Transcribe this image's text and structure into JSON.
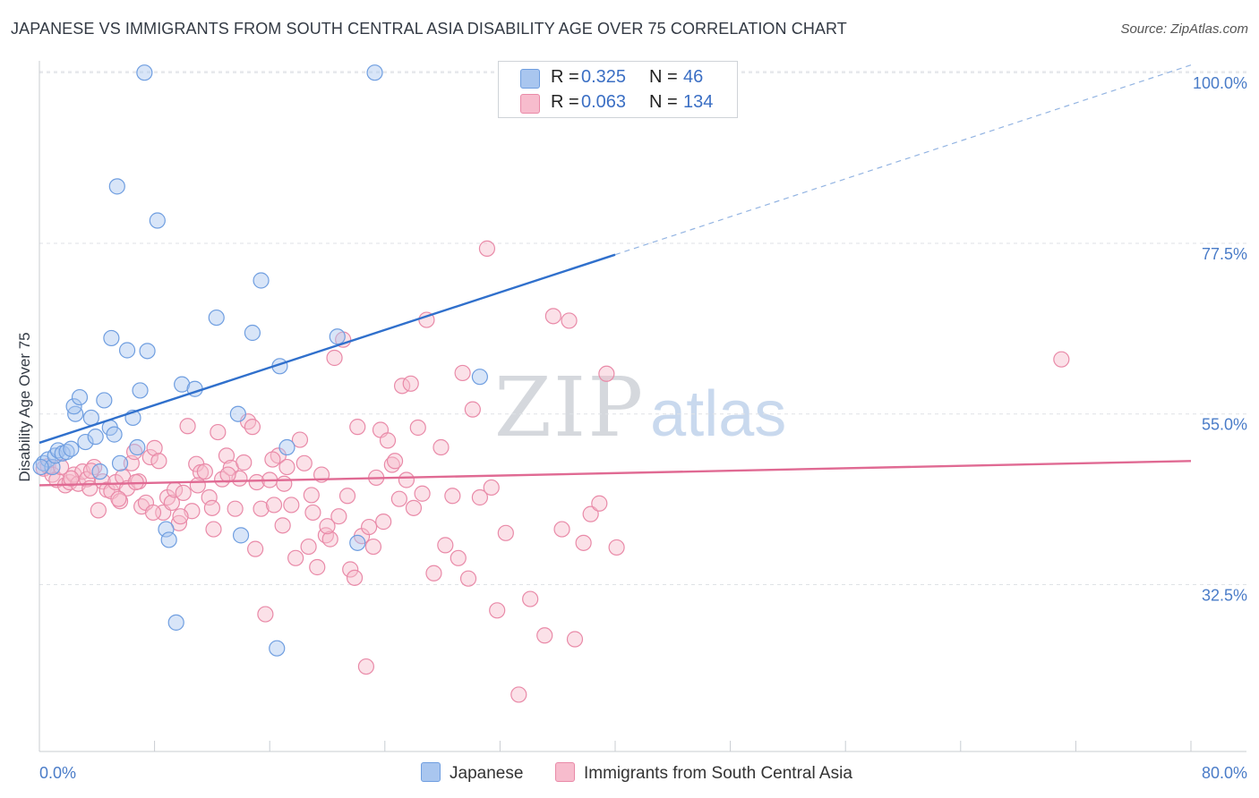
{
  "title": "JAPANESE VS IMMIGRANTS FROM SOUTH CENTRAL ASIA DISABILITY AGE OVER 75 CORRELATION CHART",
  "source": "Source: ZipAtlas.com",
  "watermark": {
    "zip": "ZIP",
    "atlas": "atlas"
  },
  "legend": {
    "rows": [
      {
        "r_label": "R =",
        "r_value": "0.325",
        "n_label": "N =",
        "n_value": "46",
        "color": "#a9c6ef",
        "border": "#6f9ee0"
      },
      {
        "r_label": "R =",
        "r_value": "0.063",
        "n_label": "N =",
        "n_value": "134",
        "color": "#f7bccd",
        "border": "#e98aa8"
      }
    ]
  },
  "bottom_legend": [
    "Japanese",
    "Immigrants from South Central Asia"
  ],
  "chart_data": {
    "type": "scatter",
    "ylabel": "Disability Age Over 75",
    "xlim": [
      0,
      80
    ],
    "ylim": [
      10.5,
      102.5
    ],
    "x_tick_labels": [
      "0.0%",
      "80.0%"
    ],
    "y_ticks": [
      {
        "value": 32.5,
        "label": "32.5%"
      },
      {
        "value": 55.0,
        "label": "55.0%"
      },
      {
        "value": 77.5,
        "label": "77.5%"
      },
      {
        "value": 100.0,
        "label": "100.0%"
      }
    ],
    "grid": true,
    "colors": {
      "japanese_fill": "#a9c6ef",
      "japanese_stroke": "#6f9ee0",
      "japanese_line": "#3070cc",
      "immigrants_fill": "#f7bccd",
      "immigrants_stroke": "#e98aa8",
      "immigrants_line": "#e06a93"
    },
    "series": [
      {
        "name": "Japanese",
        "trend": {
          "x0": 0,
          "y0": 51.2,
          "x1": 40,
          "y1": 76.0,
          "dash_to_x": 80,
          "dash_to_y": 101.0
        },
        "points": [
          [
            0.3,
            48.5
          ],
          [
            0.6,
            49.0
          ],
          [
            0.9,
            48.0
          ],
          [
            1.1,
            49.5
          ],
          [
            1.3,
            50.2
          ],
          [
            1.6,
            49.8
          ],
          [
            1.9,
            50.0
          ],
          [
            2.2,
            50.4
          ],
          [
            2.5,
            55.0
          ],
          [
            2.4,
            56.0
          ],
          [
            2.8,
            57.2
          ],
          [
            3.2,
            51.3
          ],
          [
            3.6,
            54.5
          ],
          [
            3.9,
            52.0
          ],
          [
            4.2,
            47.4
          ],
          [
            4.5,
            56.8
          ],
          [
            4.9,
            53.2
          ],
          [
            5.2,
            52.3
          ],
          [
            5.0,
            65.0
          ],
          [
            5.4,
            85.0
          ],
          [
            5.6,
            48.5
          ],
          [
            6.1,
            63.4
          ],
          [
            6.5,
            54.5
          ],
          [
            6.8,
            50.6
          ],
          [
            7.0,
            58.1
          ],
          [
            7.5,
            63.3
          ],
          [
            7.3,
            100.0
          ],
          [
            8.2,
            80.5
          ],
          [
            8.8,
            39.8
          ],
          [
            9.0,
            38.4
          ],
          [
            9.5,
            27.5
          ],
          [
            9.9,
            58.9
          ],
          [
            10.8,
            58.3
          ],
          [
            12.3,
            67.7
          ],
          [
            13.8,
            55.0
          ],
          [
            14.0,
            39.0
          ],
          [
            14.8,
            65.7
          ],
          [
            15.4,
            72.6
          ],
          [
            16.5,
            24.1
          ],
          [
            16.7,
            61.3
          ],
          [
            17.2,
            50.6
          ],
          [
            20.7,
            65.2
          ],
          [
            22.1,
            38.0
          ],
          [
            23.3,
            100.0
          ],
          [
            30.6,
            59.9
          ],
          [
            0.1,
            48.0
          ]
        ]
      },
      {
        "name": "Immigrants from South Central Asia",
        "trend": {
          "x0": 0,
          "y0": 45.6,
          "x1": 80,
          "y1": 48.8
        },
        "points": [
          [
            0.3,
            47.8
          ],
          [
            0.6,
            48.1
          ],
          [
            0.9,
            47.0
          ],
          [
            1.2,
            46.3
          ],
          [
            1.5,
            48.0
          ],
          [
            1.8,
            45.6
          ],
          [
            2.1,
            46.0
          ],
          [
            2.4,
            47.0
          ],
          [
            2.7,
            45.8
          ],
          [
            3.0,
            47.4
          ],
          [
            3.3,
            46.4
          ],
          [
            3.5,
            45.2
          ],
          [
            3.8,
            48.0
          ],
          [
            4.1,
            42.3
          ],
          [
            4.4,
            46.1
          ],
          [
            4.7,
            45.0
          ],
          [
            5.0,
            44.8
          ],
          [
            5.3,
            46.0
          ],
          [
            5.6,
            43.5
          ],
          [
            5.8,
            46.7
          ],
          [
            6.1,
            45.2
          ],
          [
            6.4,
            48.5
          ],
          [
            6.6,
            50.0
          ],
          [
            6.9,
            46.1
          ],
          [
            7.1,
            42.8
          ],
          [
            7.4,
            43.3
          ],
          [
            7.7,
            49.3
          ],
          [
            8.0,
            50.5
          ],
          [
            8.3,
            48.8
          ],
          [
            8.6,
            42.0
          ],
          [
            8.9,
            44.0
          ],
          [
            9.2,
            43.3
          ],
          [
            9.4,
            45.0
          ],
          [
            9.7,
            40.6
          ],
          [
            10.0,
            44.6
          ],
          [
            10.3,
            53.4
          ],
          [
            10.6,
            42.2
          ],
          [
            10.9,
            48.4
          ],
          [
            11.2,
            47.3
          ],
          [
            11.5,
            47.4
          ],
          [
            11.8,
            44.0
          ],
          [
            12.1,
            39.8
          ],
          [
            12.4,
            52.6
          ],
          [
            12.7,
            46.4
          ],
          [
            13.0,
            49.5
          ],
          [
            13.3,
            47.9
          ],
          [
            13.6,
            42.5
          ],
          [
            13.9,
            46.5
          ],
          [
            14.2,
            48.6
          ],
          [
            14.5,
            54.0
          ],
          [
            14.8,
            53.3
          ],
          [
            15.1,
            46.0
          ],
          [
            15.4,
            42.5
          ],
          [
            15.7,
            28.6
          ],
          [
            16.0,
            46.3
          ],
          [
            16.3,
            43.0
          ],
          [
            16.6,
            49.5
          ],
          [
            16.9,
            40.3
          ],
          [
            17.2,
            48.0
          ],
          [
            17.5,
            43.0
          ],
          [
            17.8,
            36.0
          ],
          [
            18.1,
            51.6
          ],
          [
            18.4,
            48.5
          ],
          [
            18.7,
            37.5
          ],
          [
            19.0,
            42.0
          ],
          [
            19.3,
            34.8
          ],
          [
            19.6,
            47.0
          ],
          [
            19.9,
            39.0
          ],
          [
            20.2,
            38.5
          ],
          [
            20.5,
            62.4
          ],
          [
            20.8,
            41.5
          ],
          [
            21.1,
            64.8
          ],
          [
            21.4,
            44.2
          ],
          [
            21.6,
            34.5
          ],
          [
            21.9,
            33.4
          ],
          [
            22.1,
            53.3
          ],
          [
            22.4,
            38.9
          ],
          [
            22.7,
            21.7
          ],
          [
            22.9,
            40.1
          ],
          [
            23.2,
            37.5
          ],
          [
            23.4,
            46.6
          ],
          [
            23.7,
            52.9
          ],
          [
            23.9,
            40.8
          ],
          [
            24.2,
            51.5
          ],
          [
            24.5,
            48.3
          ],
          [
            24.7,
            48.8
          ],
          [
            25.0,
            43.8
          ],
          [
            25.2,
            58.7
          ],
          [
            25.5,
            46.3
          ],
          [
            25.8,
            59.0
          ],
          [
            26.0,
            42.6
          ],
          [
            26.3,
            53.2
          ],
          [
            26.6,
            44.5
          ],
          [
            26.9,
            67.4
          ],
          [
            27.4,
            34.0
          ],
          [
            27.9,
            50.6
          ],
          [
            28.2,
            37.7
          ],
          [
            28.7,
            44.2
          ],
          [
            29.1,
            36.0
          ],
          [
            29.4,
            60.4
          ],
          [
            29.8,
            33.3
          ],
          [
            30.1,
            55.6
          ],
          [
            30.6,
            44.0
          ],
          [
            31.1,
            76.8
          ],
          [
            31.4,
            45.3
          ],
          [
            31.8,
            29.1
          ],
          [
            32.4,
            39.3
          ],
          [
            33.3,
            18.0
          ],
          [
            34.1,
            30.6
          ],
          [
            35.1,
            25.8
          ],
          [
            35.7,
            67.9
          ],
          [
            36.3,
            39.8
          ],
          [
            36.8,
            67.3
          ],
          [
            37.2,
            25.3
          ],
          [
            37.8,
            38.0
          ],
          [
            38.3,
            41.8
          ],
          [
            38.9,
            43.2
          ],
          [
            39.4,
            60.3
          ],
          [
            40.1,
            37.4
          ],
          [
            6.7,
            46.0
          ],
          [
            9.8,
            41.5
          ],
          [
            12.0,
            42.6
          ],
          [
            15.0,
            37.2
          ],
          [
            17.0,
            45.8
          ],
          [
            18.9,
            44.3
          ],
          [
            20.0,
            40.2
          ],
          [
            3.6,
            47.5
          ],
          [
            5.5,
            43.8
          ],
          [
            7.9,
            42.0
          ],
          [
            11.0,
            45.6
          ],
          [
            13.1,
            47.0
          ],
          [
            16.2,
            49.0
          ],
          [
            2.2,
            46.5
          ],
          [
            71.0,
            62.2
          ]
        ]
      }
    ]
  }
}
